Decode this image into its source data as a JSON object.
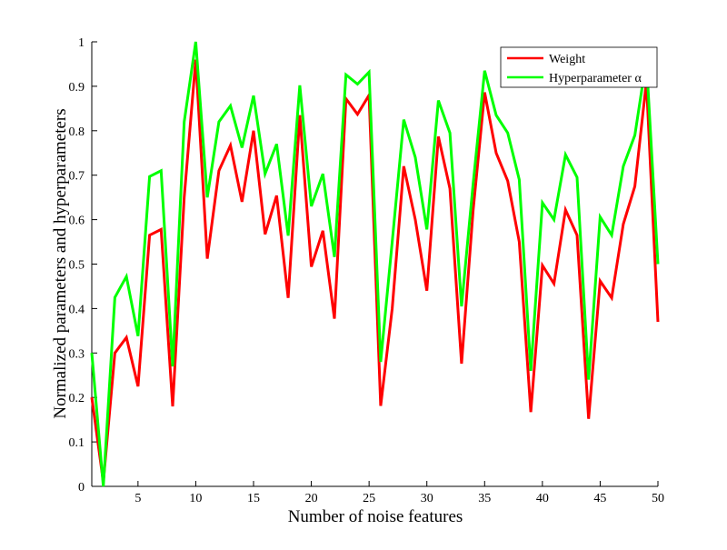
{
  "chart_data": {
    "type": "line",
    "title": "",
    "xlabel": "Number of noise features",
    "ylabel": "Normalized parameters and hyperparameters",
    "xlim": [
      1,
      50
    ],
    "ylim": [
      0,
      1
    ],
    "xticks": [
      5,
      10,
      15,
      20,
      25,
      30,
      35,
      40,
      45,
      50
    ],
    "yticks": [
      0,
      0.1,
      0.2,
      0.3,
      0.4,
      0.5,
      0.6,
      0.7,
      0.8,
      0.9,
      1
    ],
    "ytick_labels": [
      "0",
      "0.1",
      "0.2",
      "0.3",
      "0.4",
      "0.5",
      "0.6",
      "0.7",
      "0.8",
      "0.9",
      "1"
    ],
    "grid": false,
    "legend_position": "top-right",
    "x": [
      1,
      2,
      3,
      4,
      5,
      6,
      7,
      8,
      9,
      10,
      11,
      12,
      13,
      14,
      15,
      16,
      17,
      18,
      19,
      20,
      21,
      22,
      23,
      24,
      25,
      26,
      27,
      28,
      29,
      30,
      31,
      32,
      33,
      34,
      35,
      36,
      37,
      38,
      39,
      40,
      41,
      42,
      43,
      44,
      45,
      46,
      47,
      48,
      49,
      50
    ],
    "series": [
      {
        "name": "Weight",
        "color": "#ff0000",
        "values": [
          0.2,
          0.01,
          0.3,
          0.335,
          0.225,
          0.565,
          0.578,
          0.18,
          0.65,
          0.96,
          0.512,
          0.71,
          0.767,
          0.64,
          0.8,
          0.567,
          0.654,
          0.424,
          0.835,
          0.494,
          0.575,
          0.377,
          0.872,
          0.837,
          0.88,
          0.181,
          0.4,
          0.72,
          0.6,
          0.44,
          0.787,
          0.67,
          0.276,
          0.62,
          0.886,
          0.75,
          0.687,
          0.55,
          0.167,
          0.497,
          0.456,
          0.622,
          0.565,
          0.152,
          0.462,
          0.424,
          0.59,
          0.675,
          0.91,
          0.37
        ]
      },
      {
        "name": "Hyperparameter α",
        "color": "#00ff00",
        "values": [
          0.3,
          0.0,
          0.425,
          0.472,
          0.338,
          0.697,
          0.71,
          0.27,
          0.82,
          1.0,
          0.65,
          0.82,
          0.856,
          0.762,
          0.879,
          0.703,
          0.77,
          0.564,
          0.902,
          0.63,
          0.703,
          0.516,
          0.926,
          0.905,
          0.932,
          0.28,
          0.55,
          0.825,
          0.74,
          0.578,
          0.868,
          0.795,
          0.405,
          0.68,
          0.935,
          0.835,
          0.795,
          0.69,
          0.26,
          0.638,
          0.6,
          0.746,
          0.695,
          0.24,
          0.606,
          0.565,
          0.72,
          0.79,
          0.96,
          0.5
        ]
      }
    ]
  }
}
